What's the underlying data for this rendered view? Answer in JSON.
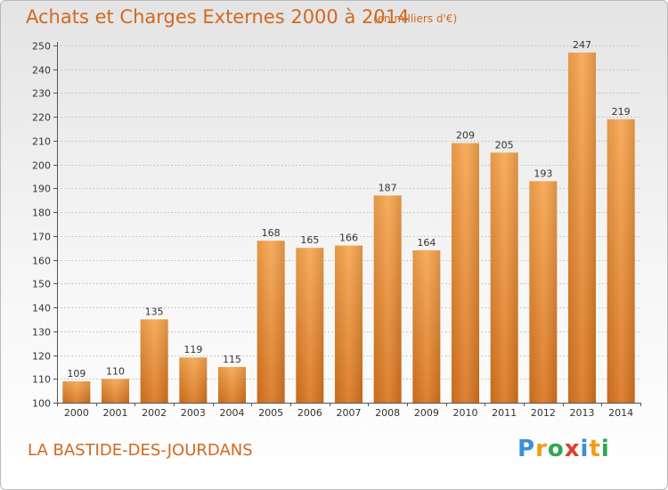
{
  "header": {
    "title": "Achats et Charges Externes 2000 à 2014",
    "subtitle": "(en milliers d'€)"
  },
  "footer": {
    "location": "LA BASTIDE-DES-JOURDANS",
    "logo_letters": [
      "P",
      "r",
      "o",
      "x",
      "i",
      "t",
      "i"
    ],
    "logo_colors": [
      "#3c8fd8",
      "#f39c12",
      "#2ea84f",
      "#e03c31",
      "#3c8fd8",
      "#f39c12",
      "#2ea84f"
    ]
  },
  "chart_data": {
    "type": "bar",
    "title": "Achats et Charges Externes 2000 à 2014",
    "subtitle": "(en milliers d'€)",
    "xlabel": "",
    "ylabel": "",
    "categories": [
      "2000",
      "2001",
      "2002",
      "2003",
      "2004",
      "2005",
      "2006",
      "2007",
      "2008",
      "2009",
      "2010",
      "2011",
      "2012",
      "2013",
      "2014"
    ],
    "values": [
      109,
      110,
      135,
      119,
      115,
      168,
      165,
      166,
      187,
      164,
      209,
      205,
      193,
      247,
      219
    ],
    "ylim": [
      100,
      250
    ],
    "yticks": [
      100,
      110,
      120,
      130,
      140,
      150,
      160,
      170,
      180,
      190,
      200,
      210,
      220,
      230,
      240,
      250
    ],
    "grid": true,
    "data_labels": true,
    "bar_color": "#f0943c"
  }
}
